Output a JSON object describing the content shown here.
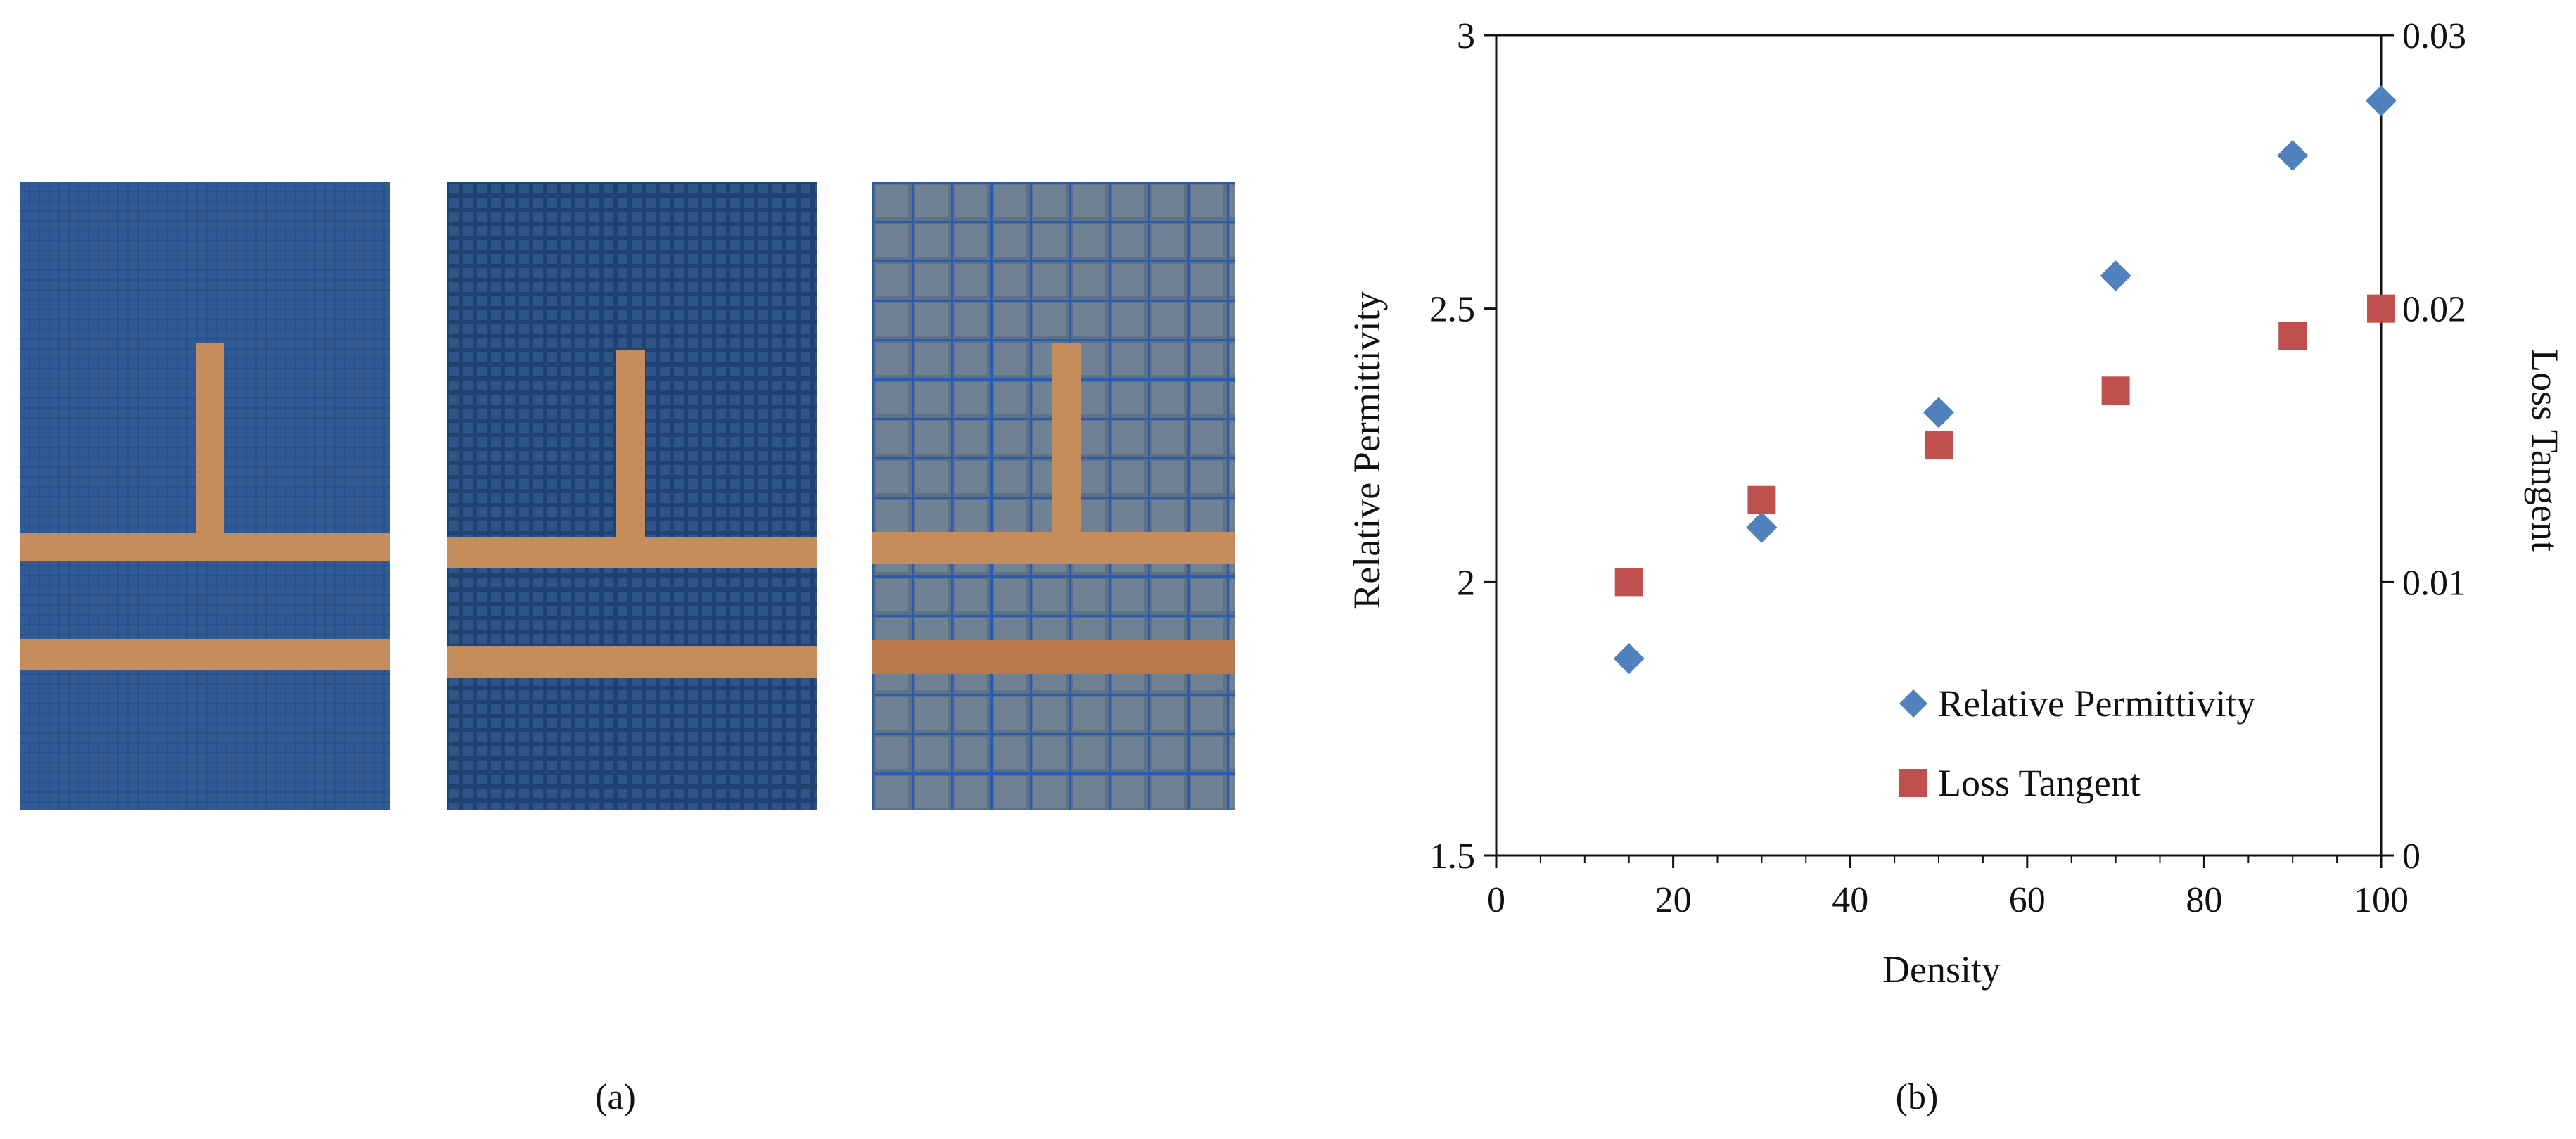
{
  "captions": {
    "a": "(a)",
    "b": "(b)"
  },
  "photos": [
    {
      "name": "substrate-sample-sparse-mesh"
    },
    {
      "name": "substrate-sample-medium-mesh"
    },
    {
      "name": "substrate-sample-coarse-grid"
    }
  ],
  "colors": {
    "permittivity": "#4f81bd",
    "loss_tangent": "#c0504d",
    "substrate_blue": "#274e86",
    "copper": "#c08a5a"
  },
  "chart_data": {
    "type": "scatter",
    "title": "",
    "xlabel": "Density",
    "ylabel": "Relative Permittivity",
    "y2label": "Loss Tangent",
    "xlim": [
      0,
      100
    ],
    "ylim": [
      1.5,
      3
    ],
    "y2lim": [
      0,
      0.03
    ],
    "x_ticks": [
      "0",
      "20",
      "40",
      "60",
      "80",
      "100"
    ],
    "y_ticks": [
      "1.5",
      "2",
      "2.5",
      "3"
    ],
    "y2_ticks": [
      "0",
      "0.01",
      "0.02",
      "0.03"
    ],
    "grid": false,
    "legend_position": "bottom-right-inside",
    "series": [
      {
        "name": "Relative Permittivity",
        "axis": "left",
        "marker": "diamond",
        "color": "#4f81bd",
        "x": [
          15,
          30,
          50,
          70,
          90,
          100
        ],
        "y": [
          1.86,
          2.1,
          2.31,
          2.56,
          2.78,
          2.88
        ]
      },
      {
        "name": "Loss Tangent",
        "axis": "right",
        "marker": "square",
        "color": "#c0504d",
        "x": [
          15,
          30,
          50,
          70,
          90,
          100
        ],
        "y": [
          0.01,
          0.013,
          0.015,
          0.017,
          0.019,
          0.02
        ]
      }
    ]
  }
}
